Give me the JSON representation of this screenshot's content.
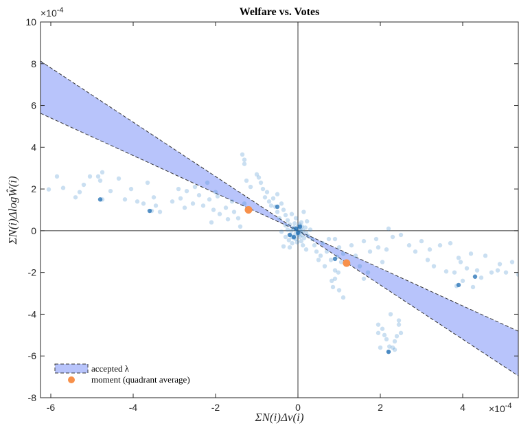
{
  "chart_data": {
    "type": "scatter",
    "title": "Welfare vs. Votes",
    "xlabel": "ΣN(i)Δv(i)",
    "ylabel": "ΣN(i)ΔlogŴ(i)",
    "x_exponent": "×10",
    "x_exponent_power": "-4",
    "y_exponent": "×10",
    "y_exponent_power": "-4",
    "xlim": [
      -6.25,
      5.35
    ],
    "ylim": [
      -8,
      10
    ],
    "xticks": [
      -6,
      -4,
      -2,
      0,
      2,
      4
    ],
    "yticks": [
      -8,
      -6,
      -4,
      -2,
      0,
      2,
      4,
      6,
      8,
      10
    ],
    "xtick_labels": [
      "-6",
      "-4",
      "-2",
      "0",
      "2",
      "4"
    ],
    "ytick_labels": [
      "-8",
      "-6",
      "-4",
      "-2",
      "0",
      "2",
      "4",
      "6",
      "8",
      "10"
    ],
    "band": {
      "name": "accepted λ",
      "color": "#b8c4fb",
      "upper_slope": -1.3,
      "lower_slope": -0.9
    },
    "moments": {
      "name": "moment (quadrant average)",
      "color": "#f7904a",
      "points": [
        [
          -1.2,
          1.0
        ],
        [
          1.18,
          -1.55
        ]
      ]
    },
    "scatter_color": "#3f8ccb",
    "scatter_points": [
      [
        -6.05,
        1.98
      ],
      [
        -5.85,
        2.6
      ],
      [
        -5.7,
        2.05
      ],
      [
        -5.4,
        1.6
      ],
      [
        -5.3,
        1.85
      ],
      [
        -5.2,
        2.2
      ],
      [
        -5.05,
        2.6
      ],
      [
        -4.85,
        2.6
      ],
      [
        -4.75,
        2.8
      ],
      [
        -4.8,
        2.4
      ],
      [
        -4.75,
        1.5
      ],
      [
        -4.55,
        1.9
      ],
      [
        -4.35,
        2.5
      ],
      [
        -4.2,
        1.5
      ],
      [
        -4.05,
        2.0
      ],
      [
        -3.9,
        1.4
      ],
      [
        -3.75,
        1.3
      ],
      [
        -3.65,
        2.3
      ],
      [
        -3.5,
        1.6
      ],
      [
        -3.45,
        1.2
      ],
      [
        -3.55,
        0.95
      ],
      [
        -3.35,
        0.9
      ],
      [
        -3.05,
        1.4
      ],
      [
        -2.9,
        2.0
      ],
      [
        -2.85,
        1.55
      ],
      [
        -2.75,
        1.1
      ],
      [
        -2.7,
        1.9
      ],
      [
        -2.55,
        1.3
      ],
      [
        -2.5,
        2.1
      ],
      [
        -2.4,
        1.7
      ],
      [
        -2.3,
        1.2
      ],
      [
        -2.2,
        2.3
      ],
      [
        -2.15,
        1.5
      ],
      [
        -2.1,
        0.4
      ],
      [
        -2.05,
        1.0
      ],
      [
        -2.0,
        1.85
      ],
      [
        -1.95,
        1.65
      ],
      [
        -1.9,
        0.8
      ],
      [
        -1.75,
        1.1
      ],
      [
        -1.7,
        0.55
      ],
      [
        -1.6,
        1.4
      ],
      [
        -1.55,
        0.9
      ],
      [
        -1.45,
        0.6
      ],
      [
        -1.4,
        0.2
      ],
      [
        -1.3,
        1.3
      ],
      [
        -1.35,
        3.65
      ],
      [
        -1.3,
        3.4
      ],
      [
        -1.3,
        3.2
      ],
      [
        -1.25,
        2.4
      ],
      [
        -1.15,
        2.1
      ],
      [
        -1.0,
        2.7
      ],
      [
        -0.95,
        2.55
      ],
      [
        -0.9,
        2.3
      ],
      [
        -0.85,
        2.0
      ],
      [
        -0.8,
        1.6
      ],
      [
        -0.75,
        1.85
      ],
      [
        -0.7,
        1.4
      ],
      [
        -0.65,
        1.2
      ],
      [
        -0.6,
        1.55
      ],
      [
        -0.55,
        1.15
      ],
      [
        -0.5,
        1.75
      ],
      [
        -0.5,
        0.9
      ],
      [
        -0.45,
        0.6
      ],
      [
        -0.4,
        1.3
      ],
      [
        -0.35,
        1.0
      ],
      [
        -0.3,
        0.75
      ],
      [
        -0.3,
        0.25
      ],
      [
        -0.25,
        0.5
      ],
      [
        -0.2,
        0.3
      ],
      [
        -0.15,
        0.8
      ],
      [
        -0.15,
        -0.3
      ],
      [
        -0.1,
        0.15
      ],
      [
        -0.05,
        0.6
      ],
      [
        -0.05,
        -0.4
      ],
      [
        0.0,
        0.2
      ],
      [
        0.0,
        -0.2
      ],
      [
        0.02,
        0.05
      ],
      [
        0.03,
        -0.1
      ],
      [
        0.04,
        0.3
      ],
      [
        0.05,
        -0.3
      ],
      [
        0.06,
        0.1
      ],
      [
        0.07,
        -0.05
      ],
      [
        0.08,
        -0.5
      ],
      [
        0.08,
        0.4
      ],
      [
        0.1,
        -0.2
      ],
      [
        0.1,
        0.2
      ],
      [
        0.12,
        0.0
      ],
      [
        0.12,
        -0.7
      ],
      [
        0.14,
        0.9
      ],
      [
        0.15,
        -0.35
      ],
      [
        0.18,
        0.15
      ],
      [
        0.2,
        -0.1
      ],
      [
        0.2,
        -0.9
      ],
      [
        0.22,
        0.45
      ],
      [
        0.25,
        -0.25
      ],
      [
        0.3,
        0.05
      ],
      [
        -0.02,
        -0.55
      ],
      [
        -0.04,
        0.05
      ],
      [
        -0.06,
        -0.15
      ],
      [
        -0.08,
        0.35
      ],
      [
        -0.1,
        -0.35
      ],
      [
        -0.12,
        0.1
      ],
      [
        -0.14,
        -0.6
      ],
      [
        -0.16,
        0.0
      ],
      [
        -0.18,
        -0.2
      ],
      [
        -0.2,
        -0.8
      ],
      [
        -0.22,
        -0.45
      ],
      [
        -0.25,
        0.05
      ],
      [
        -0.3,
        -0.3
      ],
      [
        -0.35,
        -0.75
      ],
      [
        -0.4,
        -0.05
      ],
      [
        0.35,
        -0.4
      ],
      [
        0.4,
        -0.7
      ],
      [
        0.45,
        -1.0
      ],
      [
        0.5,
        -1.4
      ],
      [
        0.55,
        -1.2
      ],
      [
        0.6,
        -0.6
      ],
      [
        0.65,
        -1.7
      ],
      [
        0.7,
        -1.0
      ],
      [
        0.75,
        -0.4
      ],
      [
        0.8,
        -1.4
      ],
      [
        0.82,
        -2.4
      ],
      [
        0.85,
        -2.7
      ],
      [
        0.9,
        -2.3
      ],
      [
        0.9,
        -1.9
      ],
      [
        0.95,
        -1.25
      ],
      [
        0.98,
        -2.0
      ],
      [
        1.0,
        -0.8
      ],
      [
        1.05,
        -1.5
      ],
      [
        1.1,
        -1.1
      ],
      [
        1.1,
        -3.2
      ],
      [
        1.0,
        -2.85
      ],
      [
        1.3,
        -0.7
      ],
      [
        1.4,
        -1.2
      ],
      [
        1.5,
        -1.7
      ],
      [
        1.6,
        -0.5
      ],
      [
        1.7,
        -2.0
      ],
      [
        1.75,
        -1.0
      ],
      [
        1.9,
        -0.4
      ],
      [
        2.05,
        -1.5
      ],
      [
        2.15,
        -0.9
      ],
      [
        0.9,
        -0.4
      ],
      [
        1.6,
        -2.3
      ],
      [
        1.95,
        -0.8
      ],
      [
        1.95,
        -4.5
      ],
      [
        1.95,
        -4.9
      ],
      [
        2.0,
        -5.6
      ],
      [
        2.05,
        -4.7
      ],
      [
        2.1,
        -5.0
      ],
      [
        2.15,
        -5.2
      ],
      [
        2.2,
        -5.8
      ],
      [
        2.22,
        -5.55
      ],
      [
        2.25,
        -4.0
      ],
      [
        2.3,
        -5.6
      ],
      [
        2.35,
        -5.3
      ],
      [
        2.4,
        -5.05
      ],
      [
        2.45,
        -4.3
      ],
      [
        2.45,
        -4.5
      ],
      [
        2.5,
        -4.9
      ],
      [
        2.35,
        -5.7
      ],
      [
        2.2,
        0.1
      ],
      [
        2.3,
        -0.3
      ],
      [
        2.5,
        -0.2
      ],
      [
        2.7,
        -0.7
      ],
      [
        2.85,
        -1.0
      ],
      [
        3.0,
        -0.5
      ],
      [
        3.15,
        -1.4
      ],
      [
        3.3,
        -1.7
      ],
      [
        3.45,
        -0.7
      ],
      [
        3.6,
        -1.95
      ],
      [
        3.8,
        -2.0
      ],
      [
        3.85,
        -2.65
      ],
      [
        3.9,
        -1.3
      ],
      [
        3.95,
        -1.5
      ],
      [
        4.0,
        -2.4
      ],
      [
        4.1,
        -1.8
      ],
      [
        4.2,
        -1.1
      ],
      [
        4.25,
        -2.7
      ],
      [
        4.35,
        -1.9
      ],
      [
        4.45,
        -2.25
      ],
      [
        4.55,
        -1.2
      ],
      [
        4.7,
        -2.0
      ],
      [
        4.9,
        -1.6
      ],
      [
        5.05,
        -2.0
      ],
      [
        5.2,
        -1.5
      ],
      [
        5.35,
        -2.1
      ],
      [
        3.7,
        -0.6
      ],
      [
        4.85,
        -1.9
      ],
      [
        3.2,
        -0.9
      ]
    ],
    "dense_points": [
      [
        -0.05,
        0.1
      ],
      [
        0.0,
        -0.1
      ],
      [
        -0.1,
        -0.3
      ],
      [
        0.05,
        0.2
      ],
      [
        -0.2,
        -0.2
      ],
      [
        -0.5,
        1.15
      ],
      [
        -3.6,
        0.95
      ],
      [
        2.2,
        -5.8
      ],
      [
        0.9,
        -1.35
      ],
      [
        3.9,
        -2.6
      ],
      [
        4.3,
        -2.2
      ],
      [
        -4.8,
        1.5
      ]
    ],
    "legend": {
      "placement": "bottom-left"
    }
  }
}
